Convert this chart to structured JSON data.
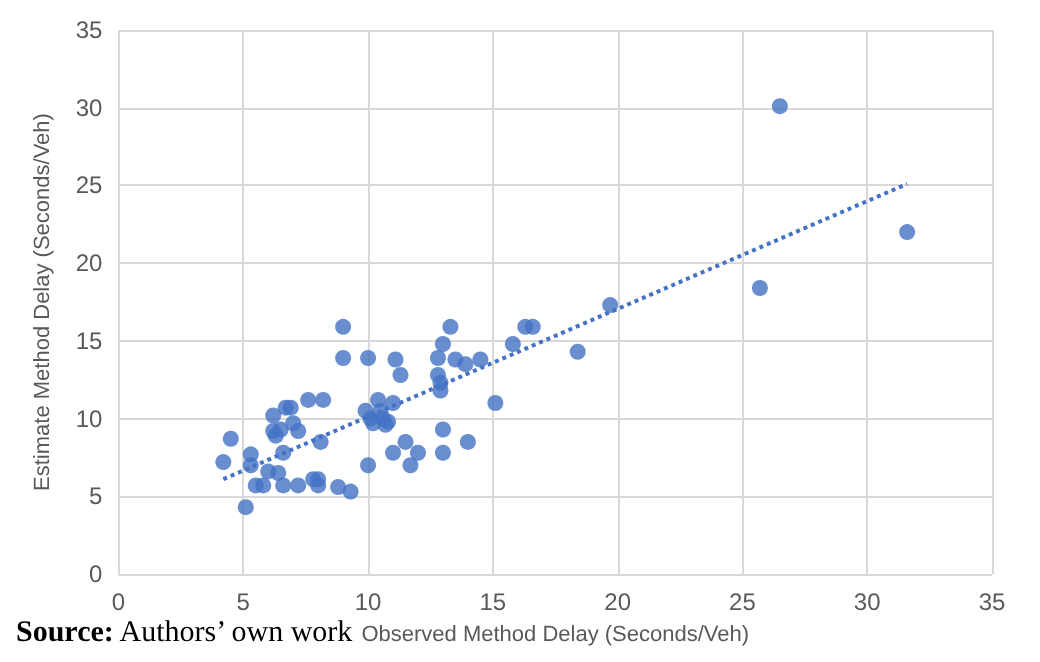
{
  "chart_data": {
    "type": "scatter",
    "xlabel": "Observed Method Delay (Seconds/Veh)",
    "ylabel": "Estimate Method Delay (Seconds/Veh)",
    "annotations": [
      "Source: Authors’ own work"
    ],
    "xlim": [
      0,
      35
    ],
    "xticks": [
      0,
      5,
      10,
      15,
      20,
      25,
      30,
      35
    ],
    "ylim": [
      0,
      35
    ],
    "yticks": [
      0,
      5,
      10,
      15,
      20,
      25,
      30,
      35
    ],
    "grid": true,
    "series": [
      {
        "type": "scatter",
        "color": "#4472c4",
        "marker": "circle",
        "x": [
          4.2,
          4.5,
          5.1,
          5.3,
          5.3,
          5.5,
          5.8,
          6.0,
          6.2,
          6.2,
          6.3,
          6.5,
          6.4,
          6.6,
          6.6,
          6.7,
          6.9,
          7.0,
          7.2,
          7.2,
          7.6,
          7.8,
          8.0,
          8.1,
          8.2,
          8.0,
          8.8,
          9.0,
          9.0,
          9.3,
          9.9,
          10.0,
          10.0,
          10.1,
          10.2,
          10.4,
          10.5,
          10.6,
          10.7,
          10.8,
          11.0,
          11.0,
          11.1,
          11.3,
          11.5,
          11.7,
          12.0,
          12.8,
          12.8,
          12.9,
          12.9,
          13.0,
          13.0,
          13.0,
          13.3,
          13.5,
          13.9,
          14.0,
          14.5,
          15.1,
          15.8,
          16.3,
          16.6,
          18.4,
          19.7,
          25.7,
          26.5,
          31.6
        ],
        "values": [
          7.2,
          8.7,
          4.3,
          7.7,
          7.0,
          5.7,
          5.7,
          6.6,
          10.2,
          9.2,
          8.9,
          9.3,
          6.5,
          7.8,
          5.7,
          10.7,
          10.7,
          9.7,
          9.2,
          5.7,
          11.2,
          6.1,
          6.1,
          8.5,
          11.2,
          5.7,
          5.6,
          15.9,
          13.9,
          5.3,
          10.5,
          13.9,
          7.0,
          10.0,
          9.7,
          11.2,
          10.5,
          10.0,
          9.6,
          9.8,
          11.0,
          7.8,
          13.8,
          12.8,
          8.5,
          7.0,
          7.8,
          13.9,
          12.8,
          12.3,
          11.8,
          9.3,
          7.8,
          14.8,
          15.9,
          13.8,
          13.5,
          8.5,
          13.8,
          11.0,
          14.8,
          15.9,
          15.9,
          14.3,
          17.3,
          18.4,
          30.1,
          22.0
        ]
      },
      {
        "type": "line",
        "color": "#4472c4",
        "marker": "none",
        "line_style": "dotted",
        "x": [
          4.2,
          31.6
        ],
        "values": [
          6.1,
          25.1
        ]
      }
    ]
  }
}
